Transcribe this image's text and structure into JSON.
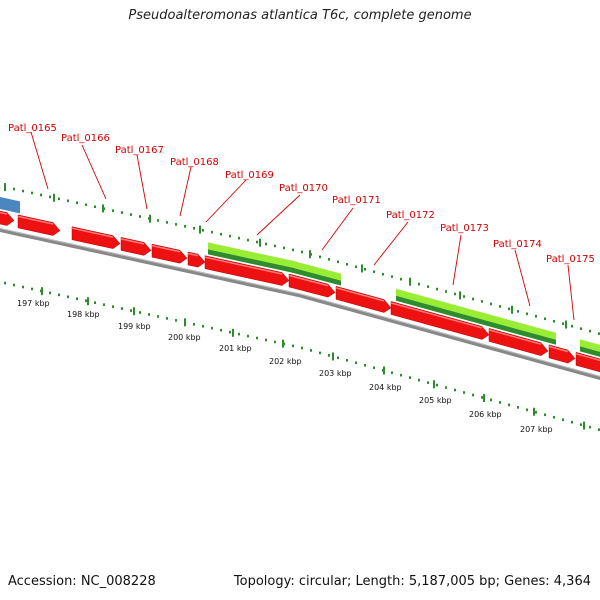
{
  "title": "Pseudoalteromonas atlantica T6c, complete genome",
  "footer": {
    "accession": "Accession: NC_008228",
    "summary": "Topology: circular; Length: 5,187,005 bp; Genes: 4,364"
  },
  "colors": {
    "forward_gene": "#ee1111",
    "reverse_gene_light": "#99ee33",
    "reverse_gene_dark": "#2e8b2e",
    "other_feature": "#4a86c0",
    "backbone": "#888888",
    "ticks": "#2e8b2e",
    "label_red": "#d40000"
  },
  "gene_labels": [
    "Patl_0165",
    "Patl_0166",
    "Patl_0167",
    "Patl_0168",
    "Patl_0169",
    "Patl_0170",
    "Patl_0171",
    "Patl_0172",
    "Patl_0173",
    "Patl_0174",
    "Patl_0175"
  ],
  "kbp_labels": [
    "197 kbp",
    "198 kbp",
    "199 kbp",
    "200 kbp",
    "201 kbp",
    "202 kbp",
    "203 kbp",
    "204 kbp",
    "205 kbp",
    "206 kbp",
    "207 kbp"
  ]
}
